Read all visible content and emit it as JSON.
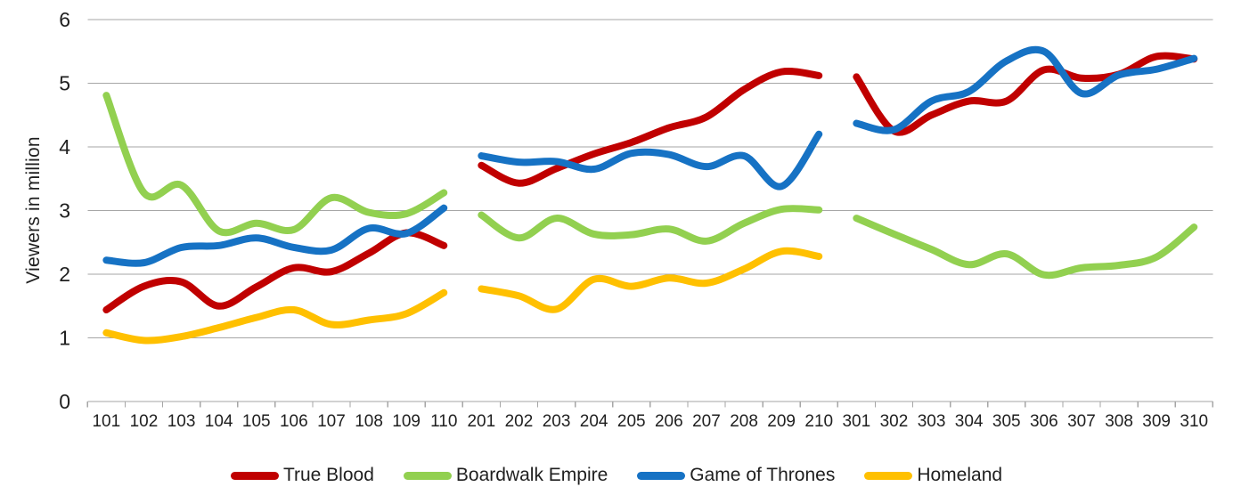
{
  "chart_data": {
    "type": "line",
    "title": "",
    "ylabel": "Viewers in million",
    "xlabel": "",
    "ylim": [
      0,
      6
    ],
    "yticks": [
      0,
      1,
      2,
      3,
      4,
      5,
      6
    ],
    "grid": true,
    "legend_position": "bottom",
    "line_style": "smooth-thick",
    "categories": [
      "101",
      "102",
      "103",
      "104",
      "105",
      "106",
      "107",
      "108",
      "109",
      "110",
      "201",
      "202",
      "203",
      "204",
      "205",
      "206",
      "207",
      "208",
      "209",
      "210",
      "301",
      "302",
      "303",
      "304",
      "305",
      "306",
      "307",
      "308",
      "309",
      "310"
    ],
    "season_breaks": [
      10,
      20
    ],
    "axis_color": "#a6a6a6",
    "grid_color": "#a6a6a6",
    "text_color": "#1f1f1f",
    "series": [
      {
        "name": "True Blood",
        "color": "#C00000",
        "values": [
          1.44,
          1.81,
          1.88,
          1.5,
          1.8,
          2.1,
          2.04,
          2.33,
          2.65,
          2.45,
          3.71,
          3.43,
          3.66,
          3.89,
          4.07,
          4.3,
          4.47,
          4.9,
          5.18,
          5.12,
          5.1,
          4.25,
          4.5,
          4.72,
          4.72,
          5.21,
          5.08,
          5.14,
          5.42,
          5.38
        ]
      },
      {
        "name": "Boardwalk Empire",
        "color": "#92D050",
        "values": [
          4.81,
          3.28,
          3.4,
          2.68,
          2.8,
          2.7,
          3.2,
          2.97,
          2.95,
          3.28,
          2.93,
          2.57,
          2.88,
          2.63,
          2.62,
          2.71,
          2.52,
          2.8,
          3.02,
          3.01,
          2.88,
          2.63,
          2.39,
          2.15,
          2.32,
          1.99,
          2.1,
          2.14,
          2.27,
          2.74
        ]
      },
      {
        "name": "Game of Thrones",
        "color": "#1672C4",
        "values": [
          2.22,
          2.18,
          2.42,
          2.45,
          2.57,
          2.42,
          2.38,
          2.72,
          2.64,
          3.04,
          3.86,
          3.76,
          3.77,
          3.65,
          3.9,
          3.88,
          3.69,
          3.86,
          3.38,
          4.2,
          4.37,
          4.27,
          4.72,
          4.87,
          5.35,
          5.5,
          4.84,
          5.13,
          5.22,
          5.39
        ]
      },
      {
        "name": "Homeland",
        "color": "#FFC000",
        "values": [
          1.08,
          0.96,
          1.02,
          1.16,
          1.32,
          1.44,
          1.21,
          1.28,
          1.38,
          1.71,
          1.77,
          1.66,
          1.45,
          1.92,
          1.81,
          1.94,
          1.86,
          2.08,
          2.36,
          2.28,
          null,
          null,
          null,
          null,
          null,
          null,
          null,
          null,
          null,
          null
        ]
      }
    ]
  }
}
